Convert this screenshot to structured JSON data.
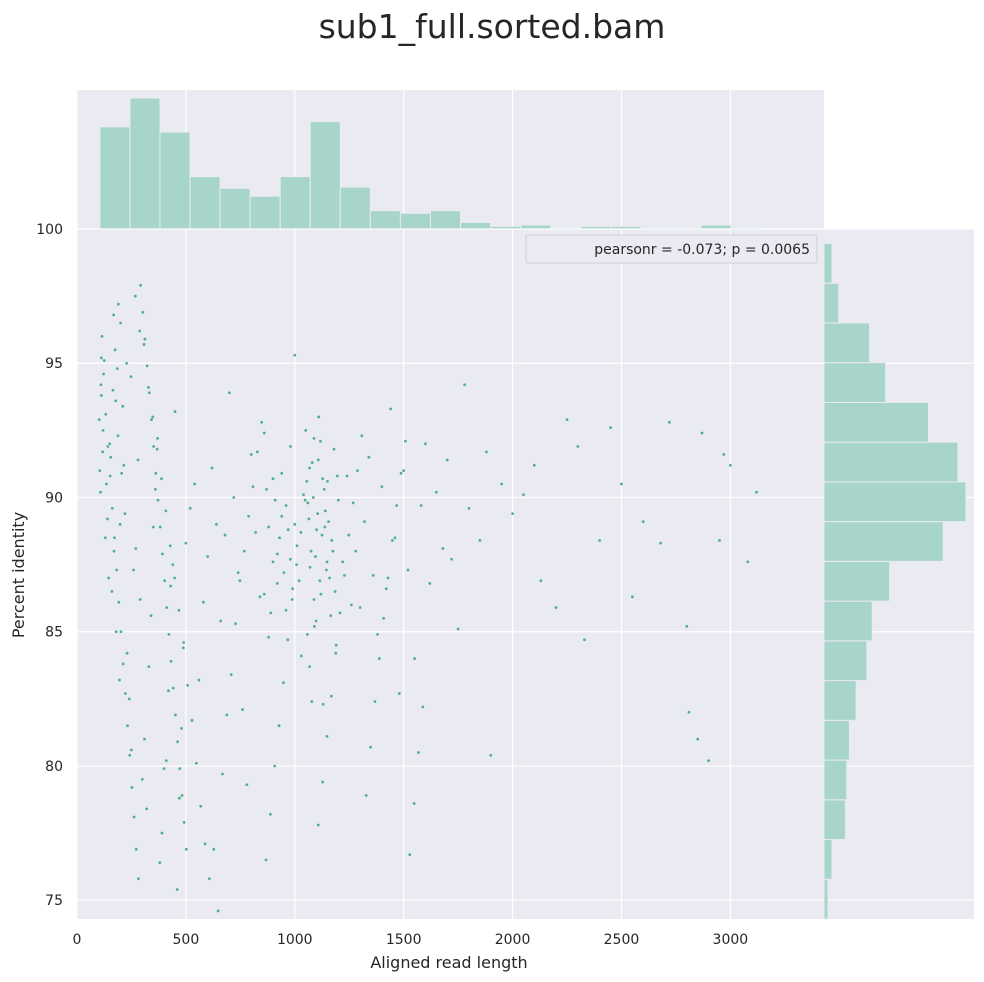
{
  "chart_data": {
    "type": "scatter",
    "title": "sub1_full.sorted.bam",
    "xlabel": "Aligned read length",
    "ylabel": "Percent identity",
    "xlim": [
      0,
      3430
    ],
    "ylim": [
      74.3,
      100
    ],
    "xticks": [
      0,
      500,
      1000,
      1500,
      2000,
      2500,
      3000
    ],
    "yticks": [
      75,
      80,
      85,
      90,
      95,
      100
    ],
    "grid": true,
    "legend": {
      "text": "pearsonr = -0.073; p = 0.0065",
      "placement": "top-right"
    },
    "colors": {
      "points": "#4fb08e",
      "hist": "#a8d5c9",
      "panel": "#eaeaf2",
      "grid": "#ffffff"
    },
    "marginal_x": {
      "bin_width": 138,
      "bins": [
        {
          "x0": 105,
          "count": 78
        },
        {
          "x0": 243,
          "count": 100
        },
        {
          "x0": 381,
          "count": 74
        },
        {
          "x0": 519,
          "count": 40
        },
        {
          "x0": 657,
          "count": 31
        },
        {
          "x0": 795,
          "count": 25
        },
        {
          "x0": 933,
          "count": 40
        },
        {
          "x0": 1071,
          "count": 82
        },
        {
          "x0": 1209,
          "count": 32
        },
        {
          "x0": 1347,
          "count": 14
        },
        {
          "x0": 1485,
          "count": 12
        },
        {
          "x0": 1623,
          "count": 14
        },
        {
          "x0": 1761,
          "count": 5
        },
        {
          "x0": 1899,
          "count": 2
        },
        {
          "x0": 2037,
          "count": 3
        },
        {
          "x0": 2175,
          "count": 1
        },
        {
          "x0": 2313,
          "count": 2
        },
        {
          "x0": 2451,
          "count": 2
        },
        {
          "x0": 2589,
          "count": 1
        },
        {
          "x0": 2727,
          "count": 1
        },
        {
          "x0": 2865,
          "count": 3
        },
        {
          "x0": 3003,
          "count": 1
        }
      ]
    },
    "marginal_y": {
      "bin_width": 1.48,
      "bins": [
        {
          "y0": 74.3,
          "count": 3
        },
        {
          "y0": 75.78,
          "count": 6
        },
        {
          "y0": 77.26,
          "count": 16
        },
        {
          "y0": 78.74,
          "count": 17
        },
        {
          "y0": 80.22,
          "count": 19
        },
        {
          "y0": 81.7,
          "count": 24
        },
        {
          "y0": 83.18,
          "count": 32
        },
        {
          "y0": 84.66,
          "count": 36
        },
        {
          "y0": 86.14,
          "count": 49
        },
        {
          "y0": 87.62,
          "count": 89
        },
        {
          "y0": 89.1,
          "count": 106
        },
        {
          "y0": 90.58,
          "count": 100
        },
        {
          "y0": 92.06,
          "count": 78
        },
        {
          "y0": 93.54,
          "count": 46
        },
        {
          "y0": 95.02,
          "count": 34
        },
        {
          "y0": 96.5,
          "count": 11
        },
        {
          "y0": 97.98,
          "count": 6
        }
      ]
    },
    "points": [
      [
        110,
        94.2
      ],
      [
        105,
        91.0
      ],
      [
        115,
        96.0
      ],
      [
        120,
        92.5
      ],
      [
        108,
        90.2
      ],
      [
        130,
        88.5
      ],
      [
        112,
        93.8
      ],
      [
        118,
        91.7
      ],
      [
        125,
        95.1
      ],
      [
        102,
        92.9
      ],
      [
        140,
        89.2
      ],
      [
        160,
        86.5
      ],
      [
        175,
        95.5
      ],
      [
        185,
        94.8
      ],
      [
        190,
        97.2
      ],
      [
        200,
        96.5
      ],
      [
        210,
        93.4
      ],
      [
        215,
        91.2
      ],
      [
        170,
        88.0
      ],
      [
        180,
        85.0
      ],
      [
        195,
        83.2
      ],
      [
        205,
        90.9
      ],
      [
        220,
        89.4
      ],
      [
        230,
        84.2
      ],
      [
        240,
        82.5
      ],
      [
        250,
        80.6
      ],
      [
        260,
        87.3
      ],
      [
        270,
        88.1
      ],
      [
        280,
        91.4
      ],
      [
        290,
        86.2
      ],
      [
        300,
        79.5
      ],
      [
        310,
        81.0
      ],
      [
        320,
        78.4
      ],
      [
        330,
        83.7
      ],
      [
        340,
        85.6
      ],
      [
        350,
        88.9
      ],
      [
        360,
        90.3
      ],
      [
        370,
        92.2
      ],
      [
        380,
        76.4
      ],
      [
        390,
        77.5
      ],
      [
        400,
        79.9
      ],
      [
        410,
        80.2
      ],
      [
        420,
        82.8
      ],
      [
        430,
        86.7
      ],
      [
        440,
        87.5
      ],
      [
        450,
        93.2
      ],
      [
        460,
        75.4
      ],
      [
        470,
        78.8
      ],
      [
        480,
        81.4
      ],
      [
        490,
        84.6
      ],
      [
        500,
        88.3
      ],
      [
        520,
        89.6
      ],
      [
        540,
        90.5
      ],
      [
        560,
        83.2
      ],
      [
        580,
        86.1
      ],
      [
        600,
        87.8
      ],
      [
        620,
        91.1
      ],
      [
        640,
        89.0
      ],
      [
        660,
        85.4
      ],
      [
        680,
        88.6
      ],
      [
        700,
        93.9
      ],
      [
        720,
        90.0
      ],
      [
        740,
        87.2
      ],
      [
        760,
        82.1
      ],
      [
        780,
        79.3
      ],
      [
        800,
        91.6
      ],
      [
        820,
        88.7
      ],
      [
        840,
        86.3
      ],
      [
        860,
        92.4
      ],
      [
        880,
        84.8
      ],
      [
        900,
        90.7
      ],
      [
        920,
        87.9
      ],
      [
        940,
        89.3
      ],
      [
        960,
        85.8
      ],
      [
        980,
        91.9
      ],
      [
        1000,
        95.3
      ],
      [
        1010,
        88.2
      ],
      [
        1020,
        86.9
      ],
      [
        1030,
        84.1
      ],
      [
        1040,
        90.1
      ],
      [
        1050,
        92.5
      ],
      [
        1060,
        89.8
      ],
      [
        1070,
        87.4
      ],
      [
        1080,
        91.3
      ],
      [
        1090,
        85.2
      ],
      [
        1100,
        88.8
      ],
      [
        1110,
        93.0
      ],
      [
        1120,
        86.4
      ],
      [
        1130,
        82.3
      ],
      [
        1140,
        89.5
      ],
      [
        1150,
        90.6
      ],
      [
        1160,
        87.0
      ],
      [
        1170,
        88.4
      ],
      [
        1180,
        91.8
      ],
      [
        1190,
        84.5
      ],
      [
        1200,
        89.9
      ],
      [
        1220,
        87.6
      ],
      [
        1240,
        90.8
      ],
      [
        1260,
        86.0
      ],
      [
        1280,
        88.0
      ],
      [
        1300,
        85.9
      ],
      [
        1320,
        89.1
      ],
      [
        1340,
        91.5
      ],
      [
        1360,
        87.1
      ],
      [
        1380,
        84.9
      ],
      [
        1400,
        90.4
      ],
      [
        1420,
        86.6
      ],
      [
        1440,
        93.3
      ],
      [
        1460,
        88.5
      ],
      [
        1480,
        82.7
      ],
      [
        1500,
        91.0
      ],
      [
        1520,
        87.3
      ],
      [
        1550,
        84.0
      ],
      [
        1580,
        89.7
      ],
      [
        1600,
        92.0
      ],
      [
        1620,
        86.8
      ],
      [
        1650,
        90.2
      ],
      [
        1680,
        88.1
      ],
      [
        1700,
        91.4
      ],
      [
        1720,
        87.7
      ],
      [
        1750,
        85.1
      ],
      [
        1780,
        94.2
      ],
      [
        1800,
        89.6
      ],
      [
        1850,
        88.4
      ],
      [
        1880,
        91.7
      ],
      [
        1900,
        80.4
      ],
      [
        1950,
        90.5
      ],
      [
        2000,
        89.4
      ],
      [
        2050,
        90.1
      ],
      [
        2100,
        91.2
      ],
      [
        2130,
        86.9
      ],
      [
        2200,
        85.9
      ],
      [
        2250,
        92.9
      ],
      [
        2300,
        91.9
      ],
      [
        2330,
        84.7
      ],
      [
        2400,
        88.4
      ],
      [
        2450,
        92.6
      ],
      [
        2500,
        90.5
      ],
      [
        2550,
        86.3
      ],
      [
        2600,
        89.1
      ],
      [
        2680,
        88.3
      ],
      [
        2720,
        92.8
      ],
      [
        2800,
        85.2
      ],
      [
        2810,
        82.0
      ],
      [
        2850,
        81.0
      ],
      [
        2870,
        92.4
      ],
      [
        2900,
        80.2
      ],
      [
        2950,
        88.4
      ],
      [
        2970,
        91.6
      ],
      [
        3000,
        91.2
      ],
      [
        3080,
        87.6
      ],
      [
        3120,
        90.2
      ],
      [
        150,
        92.0
      ],
      [
        165,
        94.0
      ],
      [
        135,
        90.5
      ],
      [
        145,
        87.0
      ],
      [
        155,
        91.5
      ],
      [
        168,
        96.8
      ],
      [
        178,
        93.6
      ],
      [
        188,
        92.3
      ],
      [
        198,
        89.0
      ],
      [
        228,
        95.0
      ],
      [
        248,
        94.5
      ],
      [
        268,
        97.5
      ],
      [
        288,
        96.2
      ],
      [
        308,
        95.7
      ],
      [
        328,
        94.1
      ],
      [
        348,
        93.0
      ],
      [
        368,
        91.8
      ],
      [
        388,
        90.7
      ],
      [
        408,
        89.5
      ],
      [
        428,
        88.2
      ],
      [
        448,
        87.0
      ],
      [
        468,
        85.8
      ],
      [
        488,
        84.4
      ],
      [
        508,
        83.0
      ],
      [
        528,
        81.7
      ],
      [
        548,
        80.1
      ],
      [
        568,
        78.5
      ],
      [
        588,
        77.1
      ],
      [
        608,
        75.8
      ],
      [
        628,
        76.9
      ],
      [
        648,
        74.6
      ],
      [
        668,
        79.7
      ],
      [
        688,
        81.9
      ],
      [
        708,
        83.4
      ],
      [
        728,
        85.3
      ],
      [
        748,
        86.9
      ],
      [
        768,
        88.0
      ],
      [
        788,
        89.3
      ],
      [
        808,
        90.4
      ],
      [
        828,
        91.7
      ],
      [
        848,
        92.8
      ],
      [
        868,
        76.5
      ],
      [
        888,
        78.2
      ],
      [
        908,
        80.0
      ],
      [
        928,
        81.5
      ],
      [
        948,
        83.1
      ],
      [
        968,
        84.7
      ],
      [
        988,
        86.2
      ],
      [
        1008,
        87.5
      ],
      [
        1028,
        88.7
      ],
      [
        1048,
        89.9
      ],
      [
        1068,
        91.1
      ],
      [
        1088,
        92.2
      ],
      [
        1108,
        77.8
      ],
      [
        1128,
        79.4
      ],
      [
        1148,
        81.1
      ],
      [
        1168,
        82.6
      ],
      [
        1188,
        84.2
      ],
      [
        1208,
        85.7
      ],
      [
        1228,
        87.1
      ],
      [
        1248,
        88.6
      ],
      [
        1268,
        89.8
      ],
      [
        1288,
        91.0
      ],
      [
        1308,
        92.3
      ],
      [
        1328,
        78.9
      ],
      [
        1348,
        80.7
      ],
      [
        1368,
        82.4
      ],
      [
        1388,
        84.0
      ],
      [
        1408,
        85.5
      ],
      [
        1428,
        87.0
      ],
      [
        1448,
        88.4
      ],
      [
        1468,
        89.7
      ],
      [
        1488,
        90.9
      ],
      [
        1508,
        92.1
      ],
      [
        1528,
        76.7
      ],
      [
        1548,
        78.6
      ],
      [
        1568,
        80.5
      ],
      [
        1588,
        82.2
      ],
      [
        112,
        95.2
      ],
      [
        122,
        94.6
      ],
      [
        132,
        93.1
      ],
      [
        142,
        91.9
      ],
      [
        152,
        90.8
      ],
      [
        162,
        89.6
      ],
      [
        172,
        88.5
      ],
      [
        182,
        87.3
      ],
      [
        192,
        86.1
      ],
      [
        202,
        85.0
      ],
      [
        212,
        83.8
      ],
      [
        222,
        82.7
      ],
      [
        232,
        81.5
      ],
      [
        242,
        80.4
      ],
      [
        252,
        79.2
      ],
      [
        262,
        78.1
      ],
      [
        272,
        76.9
      ],
      [
        282,
        75.8
      ],
      [
        292,
        97.9
      ],
      [
        302,
        96.9
      ],
      [
        312,
        95.9
      ],
      [
        322,
        94.9
      ],
      [
        332,
        93.9
      ],
      [
        342,
        92.9
      ],
      [
        352,
        91.9
      ],
      [
        362,
        90.9
      ],
      [
        372,
        89.9
      ],
      [
        382,
        88.9
      ],
      [
        392,
        87.9
      ],
      [
        402,
        86.9
      ],
      [
        412,
        85.9
      ],
      [
        422,
        84.9
      ],
      [
        432,
        83.9
      ],
      [
        442,
        82.9
      ],
      [
        452,
        81.9
      ],
      [
        462,
        80.9
      ],
      [
        472,
        79.9
      ],
      [
        482,
        78.9
      ],
      [
        492,
        77.9
      ],
      [
        502,
        76.9
      ],
      [
        1055,
        90.6
      ],
      [
        1065,
        89.2
      ],
      [
        1075,
        88.0
      ],
      [
        1085,
        90.0
      ],
      [
        1095,
        87.8
      ],
      [
        1105,
        89.4
      ],
      [
        1115,
        86.9
      ],
      [
        1125,
        88.6
      ],
      [
        1135,
        90.3
      ],
      [
        1145,
        87.3
      ],
      [
        1155,
        89.1
      ],
      [
        1165,
        85.6
      ],
      [
        1175,
        88.0
      ],
      [
        1185,
        86.5
      ],
      [
        1195,
        90.8
      ],
      [
        1058,
        84.9
      ],
      [
        1068,
        83.7
      ],
      [
        1078,
        82.4
      ],
      [
        1088,
        86.2
      ],
      [
        1098,
        85.4
      ],
      [
        1108,
        91.4
      ],
      [
        1118,
        92.1
      ],
      [
        1128,
        90.7
      ],
      [
        1138,
        88.9
      ],
      [
        1148,
        87.6
      ],
      [
        960,
        89.7
      ],
      [
        970,
        88.8
      ],
      [
        980,
        87.7
      ],
      [
        990,
        86.6
      ],
      [
        1000,
        89.0
      ],
      [
        940,
        90.9
      ],
      [
        950,
        87.2
      ],
      [
        930,
        88.5
      ],
      [
        920,
        86.8
      ],
      [
        910,
        89.9
      ],
      [
        900,
        87.6
      ],
      [
        890,
        85.7
      ],
      [
        880,
        88.9
      ],
      [
        870,
        90.3
      ],
      [
        860,
        86.4
      ]
    ]
  }
}
